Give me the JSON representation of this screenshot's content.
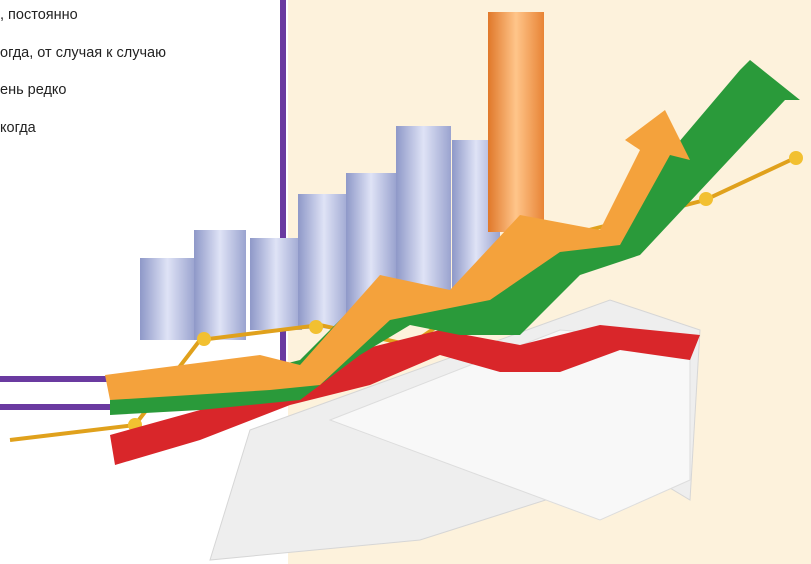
{
  "list": {
    "items": [
      ", постоянно",
      "огда, от случая к случаю",
      "ень редко",
      "когда"
    ]
  }
}
